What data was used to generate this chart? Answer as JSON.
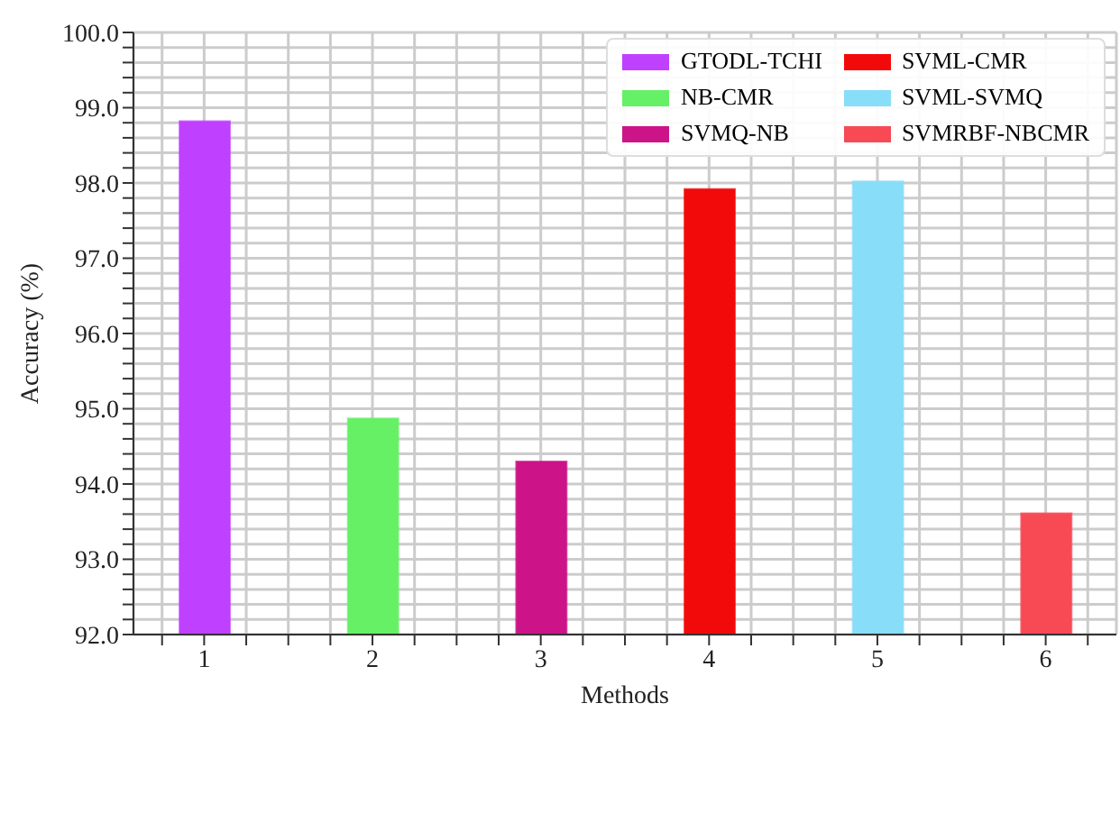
{
  "chart_data": {
    "type": "bar",
    "xlabel": "Methods",
    "ylabel": "Accuracy (%)",
    "xlim": [
      0.58,
      6.42
    ],
    "xticks": [
      {
        "value": 0.75,
        "label": null
      },
      1,
      {
        "value": 1.25,
        "label": null
      },
      {
        "value": 1.5,
        "label": null
      },
      {
        "value": 1.75,
        "label": null
      },
      2,
      {
        "value": 2.25,
        "label": null
      },
      {
        "value": 2.5,
        "label": null
      },
      {
        "value": 2.75,
        "label": null
      },
      3,
      {
        "value": 3.25,
        "label": null
      },
      {
        "value": 3.5,
        "label": null
      },
      {
        "value": 3.75,
        "label": null
      },
      4,
      {
        "value": 4.25,
        "label": null
      },
      {
        "value": 4.5,
        "label": null
      },
      {
        "value": 4.75,
        "label": null
      },
      5,
      {
        "value": 5.25,
        "label": null
      },
      {
        "value": 5.5,
        "label": null
      },
      {
        "value": 5.75,
        "label": null
      },
      6,
      {
        "value": 6.25,
        "label": null
      }
    ],
    "ylim": [
      92,
      100
    ],
    "yticks": [
      {
        "value": 92,
        "label": "92.0"
      },
      {
        "value": 92.2,
        "label": null
      },
      {
        "value": 92.4,
        "label": null
      },
      {
        "value": 92.6,
        "label": null
      },
      {
        "value": 92.8,
        "label": null
      },
      {
        "value": 93,
        "label": "93.0"
      },
      {
        "value": 93.2,
        "label": null
      },
      {
        "value": 93.4,
        "label": null
      },
      {
        "value": 93.6,
        "label": null
      },
      {
        "value": 93.8,
        "label": null
      },
      {
        "value": 94,
        "label": "94.0"
      },
      {
        "value": 94.2,
        "label": null
      },
      {
        "value": 94.4,
        "label": null
      },
      {
        "value": 94.6,
        "label": null
      },
      {
        "value": 94.8,
        "label": null
      },
      {
        "value": 95,
        "label": "95.0"
      },
      {
        "value": 95.2,
        "label": null
      },
      {
        "value": 95.4,
        "label": null
      },
      {
        "value": 95.6,
        "label": null
      },
      {
        "value": 95.8,
        "label": null
      },
      {
        "value": 96,
        "label": "96.0"
      },
      {
        "value": 96.2,
        "label": null
      },
      {
        "value": 96.4,
        "label": null
      },
      {
        "value": 96.6,
        "label": null
      },
      {
        "value": 96.8,
        "label": null
      },
      {
        "value": 97,
        "label": "97.0"
      },
      {
        "value": 97.2,
        "label": null
      },
      {
        "value": 97.4,
        "label": null
      },
      {
        "value": 97.6,
        "label": null
      },
      {
        "value": 97.8,
        "label": null
      },
      {
        "value": 98,
        "label": "98.0"
      },
      {
        "value": 98.2,
        "label": null
      },
      {
        "value": 98.4,
        "label": null
      },
      {
        "value": 98.6,
        "label": null
      },
      {
        "value": 98.8,
        "label": null
      },
      {
        "value": 99,
        "label": "99.0"
      },
      {
        "value": 99.2,
        "label": null
      },
      {
        "value": 99.4,
        "label": null
      },
      {
        "value": 99.6,
        "label": null
      },
      {
        "value": 99.8,
        "label": null
      },
      {
        "value": 100,
        "label": "100.0"
      }
    ],
    "grid": true,
    "legend": "top right",
    "series": [
      {
        "name": "GTODL-TCHI",
        "color": "#bf40ff",
        "x": [
          1
        ],
        "values": [
          98.82
        ]
      },
      {
        "name": "NB-CMR",
        "color": "#66f066",
        "x": [
          2
        ],
        "values": [
          94.87
        ]
      },
      {
        "name": "SVMQ-NB",
        "color": "#cc1488",
        "x": [
          3
        ],
        "values": [
          94.3
        ]
      },
      {
        "name": "SVML-CMR",
        "color": "#f20a0a",
        "x": [
          4
        ],
        "values": [
          97.92
        ]
      },
      {
        "name": "SVML-SVMQ",
        "color": "#88ddf8",
        "x": [
          5
        ],
        "values": [
          98.02
        ]
      },
      {
        "name": "SVMRBF-NBCMR",
        "color": "#f74a55",
        "x": [
          6
        ],
        "values": [
          93.61
        ]
      }
    ]
  }
}
